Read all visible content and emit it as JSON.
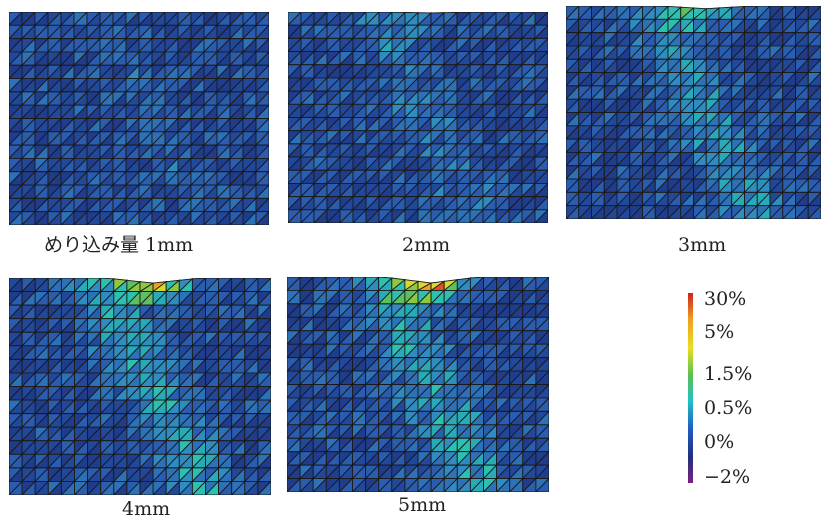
{
  "panels": [
    {
      "caption": "めり込み量 1mm",
      "seed": 11,
      "hot": 0.0,
      "bias": 0.1
    },
    {
      "caption": "2mm",
      "seed": 23,
      "hot": 0.15,
      "bias": 0.22
    },
    {
      "caption": "3mm",
      "seed": 37,
      "hot": 0.45,
      "bias": 0.34
    },
    {
      "caption": "4mm",
      "seed": 51,
      "hot": 0.85,
      "bias": 0.4
    },
    {
      "caption": "5mm",
      "seed": 67,
      "hot": 1.0,
      "bias": 0.42
    }
  ],
  "legend": {
    "labels": [
      "30%",
      "5%",
      "1.5%",
      "0.5%",
      "0%",
      "−2%"
    ],
    "colors": [
      "#cc2222",
      "#f0a020",
      "#e8e020",
      "#5cc050",
      "#20c0c8",
      "#2060c0",
      "#203080",
      "#7a2080"
    ]
  }
}
